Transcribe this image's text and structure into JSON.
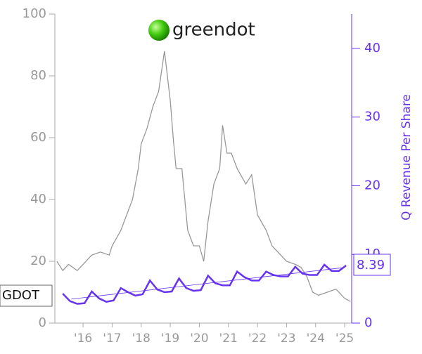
{
  "chart_data": {
    "type": "line",
    "logo": "greendot",
    "ticker": "GDOT",
    "y2label": "Q Revenue Per Share",
    "xlim": [
      2015.03,
      2025.24
    ],
    "xticks": [
      {
        "value": 2016,
        "label": "'16"
      },
      {
        "value": 2017,
        "label": "'17"
      },
      {
        "value": 2018,
        "label": "'18"
      },
      {
        "value": 2019,
        "label": "'19"
      },
      {
        "value": 2020,
        "label": "'20"
      },
      {
        "value": 2021,
        "label": "'21"
      },
      {
        "value": 2022,
        "label": "'22"
      },
      {
        "value": 2023,
        "label": "'23"
      },
      {
        "value": 2024,
        "label": "'24"
      },
      {
        "value": 2025,
        "label": "'25"
      }
    ],
    "ylim": [
      0,
      100
    ],
    "yticks": [
      0,
      20,
      40,
      60,
      80,
      100
    ],
    "y2lim": [
      0,
      45
    ],
    "y2ticks": [
      0,
      10,
      20,
      30,
      40
    ],
    "series": [
      {
        "color": "#999999",
        "axis": "y",
        "x": [
          2015.1,
          2015.3,
          2015.5,
          2015.8,
          2016.0,
          2016.3,
          2016.6,
          2016.9,
          2017.0,
          2017.3,
          2017.5,
          2017.7,
          2017.9,
          2018.0,
          2018.2,
          2018.4,
          2018.6,
          2018.8,
          2018.9,
          2019.0,
          2019.1,
          2019.2,
          2019.4,
          2019.6,
          2019.8,
          2020.0,
          2020.15,
          2020.3,
          2020.5,
          2020.7,
          2020.8,
          2020.95,
          2021.1,
          2021.3,
          2021.6,
          2021.8,
          2022.0,
          2022.3,
          2022.5,
          2022.8,
          2023.0,
          2023.3,
          2023.5,
          2023.7,
          2023.9,
          2024.1,
          2024.4,
          2024.7,
          2025.0,
          2025.2
        ],
        "values": [
          20,
          17,
          19,
          17,
          19,
          22,
          23,
          22,
          25,
          30,
          35,
          40,
          50,
          58,
          63,
          70,
          75,
          88,
          80,
          72,
          60,
          50,
          50,
          30,
          25,
          25,
          20,
          33,
          45,
          50,
          64,
          55,
          55,
          50,
          45,
          48,
          35,
          30,
          25,
          22,
          20,
          19,
          18,
          15,
          10,
          9,
          10,
          11,
          8,
          7
        ]
      },
      {
        "color": "#6633ee",
        "axis": "y2",
        "x": [
          2015.3,
          2015.55,
          2015.8,
          2016.05,
          2016.3,
          2016.55,
          2016.8,
          2017.05,
          2017.3,
          2017.55,
          2017.8,
          2018.05,
          2018.3,
          2018.55,
          2018.8,
          2019.05,
          2019.3,
          2019.55,
          2019.8,
          2020.05,
          2020.3,
          2020.55,
          2020.8,
          2021.05,
          2021.3,
          2021.55,
          2021.8,
          2022.05,
          2022.3,
          2022.55,
          2022.8,
          2023.05,
          2023.3,
          2023.55,
          2023.8,
          2024.05,
          2024.3,
          2024.55,
          2024.8,
          2025.05
        ],
        "values": [
          4.3,
          3.2,
          2.8,
          2.9,
          4.6,
          3.6,
          3.1,
          3.3,
          5.1,
          4.5,
          4.0,
          4.2,
          6.2,
          4.9,
          4.5,
          4.6,
          6.5,
          5.1,
          4.7,
          4.8,
          6.9,
          5.8,
          5.5,
          5.5,
          7.5,
          6.7,
          6.2,
          6.2,
          7.5,
          7.0,
          6.8,
          6.8,
          8.2,
          7.2,
          7.0,
          7.0,
          8.5,
          7.6,
          7.6,
          8.39
        ]
      }
    ],
    "trendline": {
      "x": [
        2015.6,
        2025.0
      ],
      "values": [
        3.5,
        8.1
      ],
      "color": "#6633ee"
    }
  }
}
